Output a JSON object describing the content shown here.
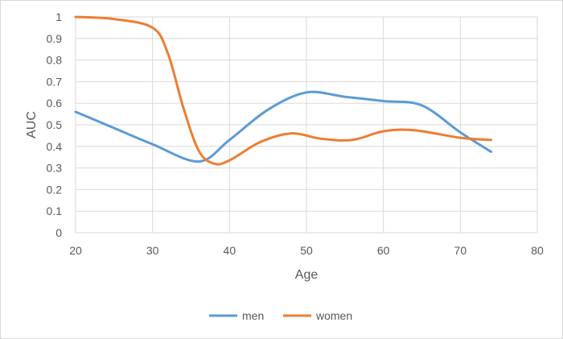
{
  "chart_data": {
    "type": "line",
    "title": "",
    "xlabel": "Age",
    "ylabel": "AUC",
    "xlim": [
      20,
      80
    ],
    "ylim": [
      0,
      1
    ],
    "x_ticks": [
      20,
      30,
      40,
      50,
      60,
      70,
      80
    ],
    "y_ticks": [
      0,
      0.1,
      0.2,
      0.3,
      0.4,
      0.5,
      0.6,
      0.7,
      0.8,
      0.9,
      1
    ],
    "x_tick_labels": [
      "20",
      "30",
      "40",
      "50",
      "60",
      "70",
      "80"
    ],
    "y_tick_labels": [
      "0",
      "0.1",
      "0.2",
      "0.3",
      "0.4",
      "0.5",
      "0.6",
      "0.7",
      "0.8",
      "0.9",
      "1"
    ],
    "grid": true,
    "legend_position": "bottom",
    "series": [
      {
        "name": "men",
        "color": "#5b9bd5",
        "x": [
          20,
          25,
          30,
          36,
          40,
          45,
          50,
          55,
          60,
          65,
          70,
          74
        ],
        "y": [
          0.56,
          0.485,
          0.41,
          0.33,
          0.43,
          0.57,
          0.65,
          0.63,
          0.61,
          0.59,
          0.465,
          0.375
        ]
      },
      {
        "name": "women",
        "color": "#ed7d31",
        "x": [
          20,
          25,
          30,
          32,
          34,
          36,
          38,
          40,
          44,
          48,
          52,
          56,
          60,
          64,
          70,
          74
        ],
        "y": [
          1.0,
          0.99,
          0.95,
          0.83,
          0.58,
          0.38,
          0.32,
          0.335,
          0.42,
          0.46,
          0.435,
          0.43,
          0.47,
          0.475,
          0.44,
          0.43
        ]
      }
    ]
  }
}
